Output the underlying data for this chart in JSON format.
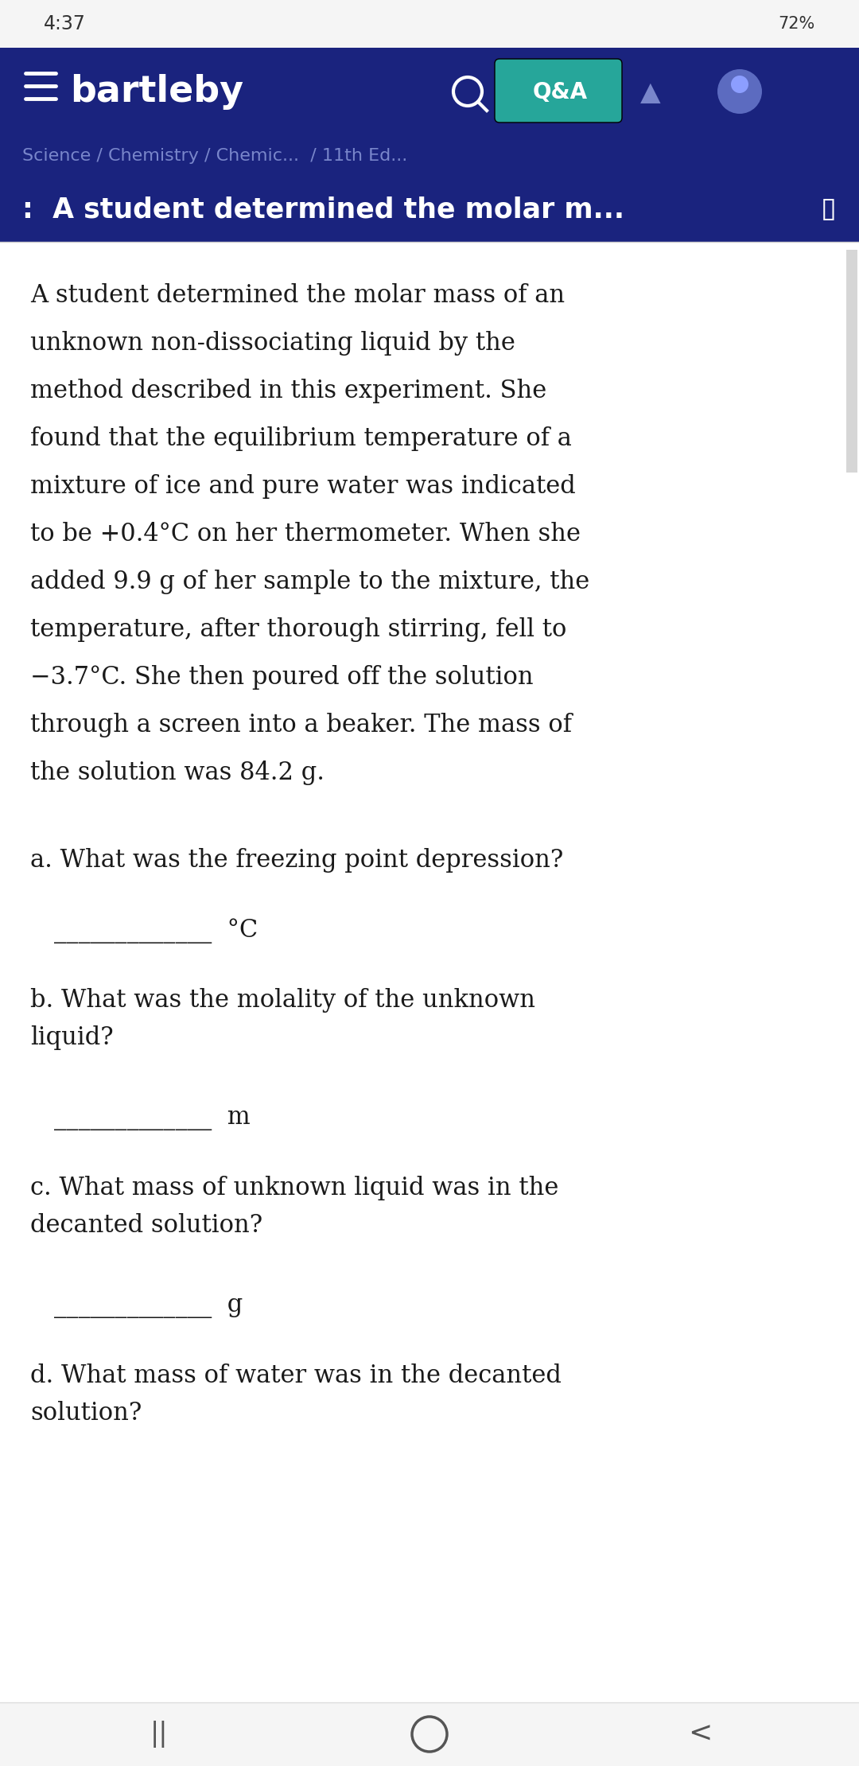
{
  "status_bar_time": "4:37",
  "status_bar_battery": "72%",
  "nav_bar_color": "#1a237e",
  "breadcrumb": "Science / Chemistry / Chemic...  / 11th Ed...",
  "header_title": ":  A student determined the molar m...",
  "body_text": [
    "A student determined the molar mass of an",
    "unknown non-dissociating liquid by the",
    "method described in this experiment. She",
    "found that the equilibrium temperature of a",
    "mixture of ice and pure water was indicated",
    "to be +0.4°C on her thermometer. When she",
    "added 9.9 g of her sample to the mixture, the",
    "temperature, after thorough stirring, fell to",
    "−3.7°C. She then poured off the solution",
    "through a screen into a beaker. The mass of",
    "the solution was 84.2 g."
  ],
  "question_configs": [
    {
      "label": "a. What was the freezing point depression?",
      "lines": 1,
      "answer": "_____________  °C"
    },
    {
      "label": "b. What was the molality of the unknown\nliquid?",
      "lines": 2,
      "answer": "_____________  m"
    },
    {
      "label": "c. What mass of unknown liquid was in the\ndecanted solution?",
      "lines": 2,
      "answer": "_____________  g"
    },
    {
      "label": "d. What mass of water was in the decanted\nsolution?",
      "lines": 2,
      "answer": ""
    }
  ],
  "bg_color": "#ffffff",
  "text_color": "#1a1a1a",
  "breadcrumb_color": "#7986cb",
  "body_font_size": 22,
  "question_font_size": 22
}
